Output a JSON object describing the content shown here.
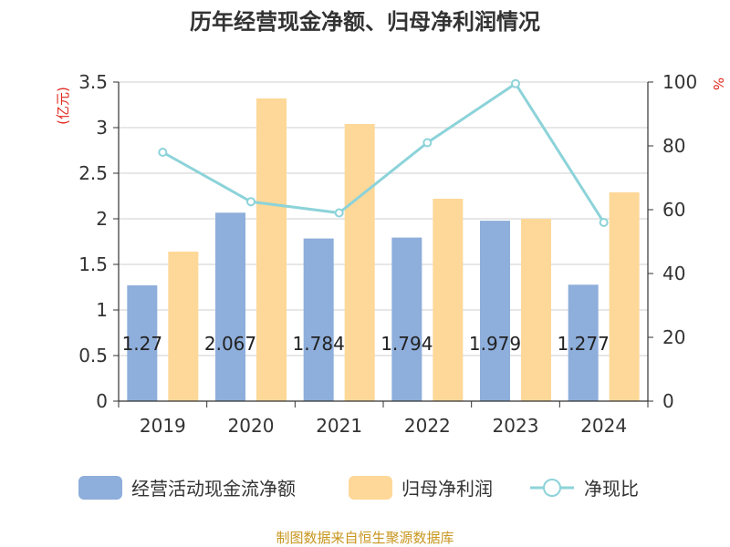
{
  "chart_data": {
    "type": "bar",
    "title": "历年经营现金净额、归母净利润情况",
    "categories": [
      "2019",
      "2020",
      "2021",
      "2022",
      "2023",
      "2024"
    ],
    "series": [
      {
        "name": "经营活动现金流净额",
        "type": "bar",
        "axis": "left",
        "color": "#8eaedb",
        "values": [
          1.27,
          2.067,
          1.784,
          1.794,
          1.979,
          1.277
        ],
        "labels": [
          "1.27",
          "2.067",
          "1.784",
          "1.794",
          "1.979",
          "1.277"
        ]
      },
      {
        "name": "归母净利润",
        "type": "bar",
        "axis": "left",
        "color": "#fed898",
        "values": [
          1.64,
          3.32,
          3.04,
          2.22,
          2.0,
          2.29
        ]
      },
      {
        "name": "净现比",
        "type": "line",
        "axis": "right",
        "color": "#8cd3d9",
        "values": [
          78,
          62.5,
          59,
          81,
          99.5,
          56
        ]
      }
    ],
    "y_left": {
      "label": "(亿元)",
      "ylim": [
        0,
        3.5
      ],
      "ticks": [
        "0",
        "0.5",
        "1",
        "1.5",
        "2",
        "2.5",
        "3",
        "3.5"
      ]
    },
    "y_right": {
      "label": "%",
      "ylim": [
        0,
        100
      ],
      "ticks": [
        "0",
        "20",
        "40",
        "60",
        "80",
        "100"
      ]
    },
    "grid": true,
    "legend_position": "bottom"
  },
  "source": "制图数据来自恒生聚源数据库"
}
